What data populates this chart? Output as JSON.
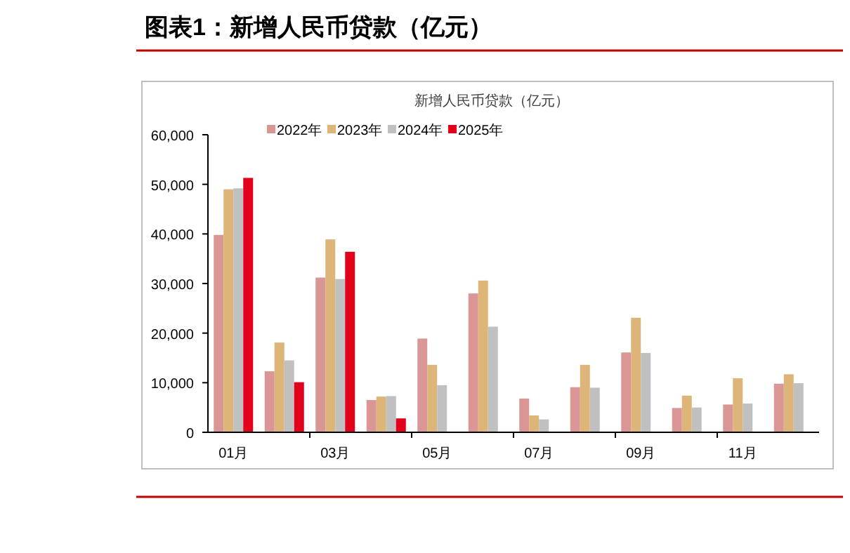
{
  "chart_data": {
    "type": "bar",
    "title": "图表1：新增人民币贷款（亿元）",
    "subtitle": "新增人民币贷款（亿元）",
    "categories": [
      "01月",
      null,
      "03月",
      null,
      "05月",
      null,
      "07月",
      null,
      "09月",
      null,
      "11月",
      null
    ],
    "series": [
      {
        "name": "2022年",
        "color": "#d99694",
        "values": [
          39800,
          12300,
          31200,
          6500,
          18900,
          28000,
          6800,
          9100,
          16100,
          4900,
          5600,
          9800
        ]
      },
      {
        "name": "2023年",
        "color": "#deb578",
        "values": [
          49000,
          18100,
          38900,
          7200,
          13600,
          30600,
          3400,
          13600,
          23100,
          7400,
          10900,
          11700
        ]
      },
      {
        "name": "2024年",
        "color": "#c0c0c0",
        "values": [
          49200,
          14500,
          30900,
          7300,
          9500,
          21300,
          2600,
          9000,
          16000,
          5000,
          5800,
          9900
        ]
      },
      {
        "name": "2025年",
        "color": "#e3001a",
        "values": [
          51300,
          10100,
          36400,
          2800,
          null,
          null,
          null,
          null,
          null,
          null,
          null,
          null
        ]
      }
    ],
    "ylim": [
      0,
      60000
    ],
    "yticks": [
      0,
      {
        "value": 10000,
        "label": "10,000"
      },
      {
        "value": 20000,
        "label": "20,000"
      },
      {
        "value": 30000,
        "label": "30,000"
      },
      {
        "value": 40000,
        "label": "40,000"
      },
      {
        "value": 50000,
        "label": "50,000"
      },
      {
        "value": 60000,
        "label": "60,000"
      }
    ],
    "grid": false,
    "legend": "top"
  }
}
